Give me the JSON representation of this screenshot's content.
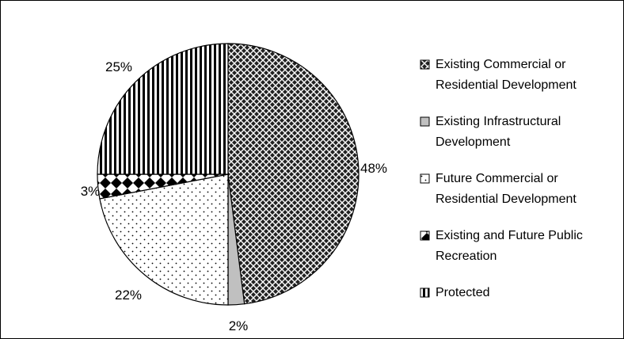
{
  "chart_data": {
    "type": "pie",
    "title": "",
    "slices": [
      {
        "label": "Existing Commercial or Residential Development",
        "value": 48,
        "data_label": "48%",
        "pattern": "crosshatch"
      },
      {
        "label": "Existing Infrastructural Development",
        "value": 2,
        "data_label": "2%",
        "pattern": "gray"
      },
      {
        "label": "Future Commercial or Residential Development",
        "value": 22,
        "data_label": "22%",
        "pattern": "dots"
      },
      {
        "label": "Existing and Future Public Recreation",
        "value": 3,
        "data_label": "3%",
        "pattern": "diamonds"
      },
      {
        "label": "Protected",
        "value": 25,
        "data_label": "25%",
        "pattern": "vertical-stripes"
      }
    ],
    "legend_position": "right",
    "legend_lines": [
      [
        "Existing Commercial or",
        "Residential Development"
      ],
      [
        "Existing Infrastructural",
        "Development"
      ],
      [
        "Future Commercial or",
        "Residential Development"
      ],
      [
        "Existing and Future Public",
        "Recreation"
      ],
      [
        "Protected"
      ]
    ],
    "colors": {
      "line": "#000000",
      "background": "#ffffff",
      "gray_fill": "#c0c0c0"
    }
  }
}
